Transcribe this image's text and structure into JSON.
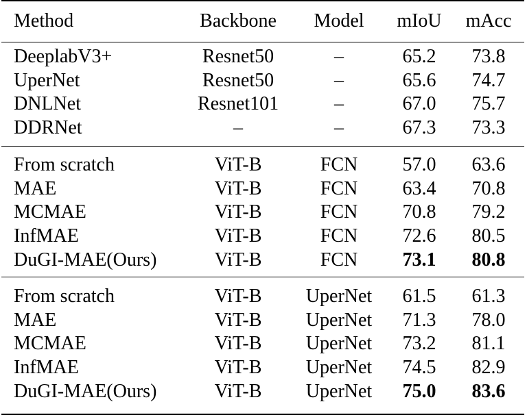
{
  "table": {
    "headers": {
      "method": "Method",
      "backbone": "Backbone",
      "model": "Model",
      "miou": "mIoU",
      "macc": "mAcc"
    },
    "groups": [
      {
        "rows": [
          {
            "method": "DeeplabV3+",
            "backbone": "Resnet50",
            "model": "–",
            "miou": "65.2",
            "macc": "73.8",
            "best": false
          },
          {
            "method": "UperNet",
            "backbone": "Resnet50",
            "model": "–",
            "miou": "65.6",
            "macc": "74.7",
            "best": false
          },
          {
            "method": "DNLNet",
            "backbone": "Resnet101",
            "model": "–",
            "miou": "67.0",
            "macc": "75.7",
            "best": false
          },
          {
            "method": "DDRNet",
            "backbone": "–",
            "model": "–",
            "miou": "67.3",
            "macc": "73.3",
            "best": false
          }
        ]
      },
      {
        "rows": [
          {
            "method": "From scratch",
            "backbone": "ViT-B",
            "model": "FCN",
            "miou": "57.0",
            "macc": "63.6",
            "best": false
          },
          {
            "method": "MAE",
            "backbone": "ViT-B",
            "model": "FCN",
            "miou": "63.4",
            "macc": "70.8",
            "best": false
          },
          {
            "method": "MCMAE",
            "backbone": "ViT-B",
            "model": "FCN",
            "miou": "70.8",
            "macc": "79.2",
            "best": false
          },
          {
            "method": "InfMAE",
            "backbone": "ViT-B",
            "model": "FCN",
            "miou": "72.6",
            "macc": "80.5",
            "best": false
          },
          {
            "method": "DuGI-MAE(Ours)",
            "backbone": "ViT-B",
            "model": "FCN",
            "miou": "73.1",
            "macc": "80.8",
            "best": true
          }
        ]
      },
      {
        "rows": [
          {
            "method": "From scratch",
            "backbone": "ViT-B",
            "model": "UperNet",
            "miou": "61.5",
            "macc": "61.3",
            "best": false
          },
          {
            "method": "MAE",
            "backbone": "ViT-B",
            "model": "UperNet",
            "miou": "71.3",
            "macc": "78.0",
            "best": false
          },
          {
            "method": "MCMAE",
            "backbone": "ViT-B",
            "model": "UperNet",
            "miou": "73.2",
            "macc": "81.1",
            "best": false
          },
          {
            "method": "InfMAE",
            "backbone": "ViT-B",
            "model": "UperNet",
            "miou": "74.5",
            "macc": "82.9",
            "best": false
          },
          {
            "method": "DuGI-MAE(Ours)",
            "backbone": "ViT-B",
            "model": "UperNet",
            "miou": "75.0",
            "macc": "83.6",
            "best": true
          }
        ]
      }
    ]
  }
}
